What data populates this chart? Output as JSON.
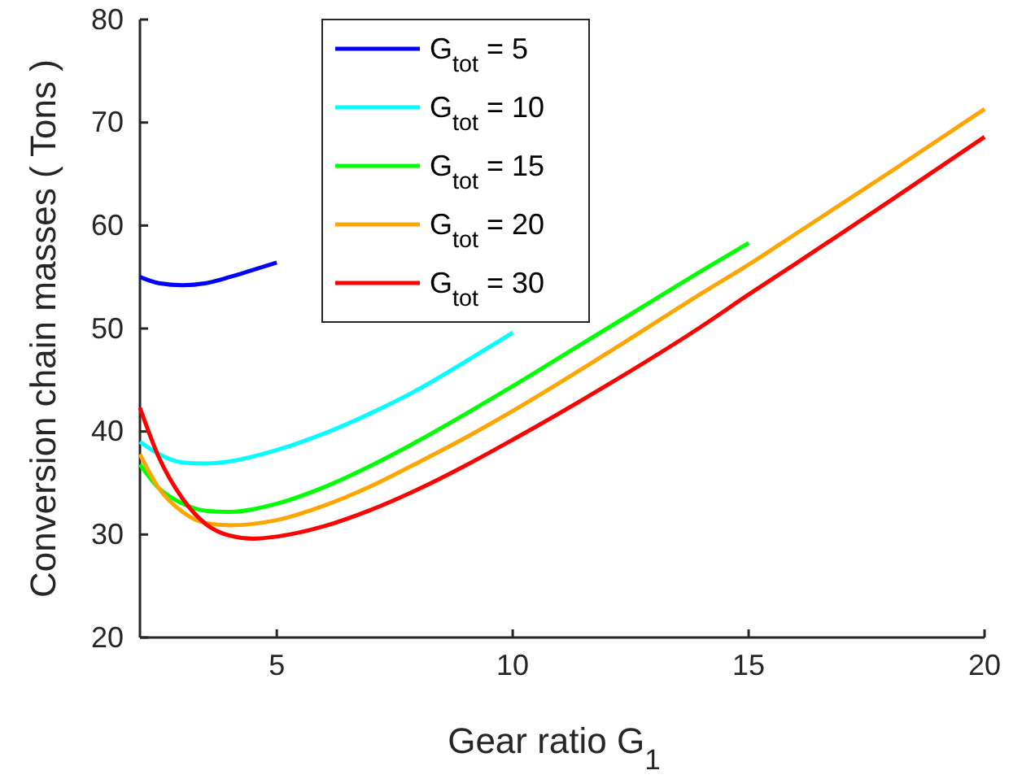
{
  "chart_data": {
    "type": "line",
    "xlabel": "Gear ratio G$_{1}$",
    "ylabel": "Conversion chain masses ( Tons )",
    "xlim": [
      2.1,
      20
    ],
    "ylim": [
      20,
      80
    ],
    "xticks": [
      5,
      10,
      15,
      20
    ],
    "yticks": [
      20,
      30,
      40,
      50,
      60,
      70,
      80
    ],
    "grid": false,
    "legend": "top",
    "line_style": "solid",
    "marker": "none",
    "series": [
      {
        "name": "G$_{tot}$ = 5",
        "color": "#0000ff",
        "x": [
          2.1,
          2.5,
          3,
          3.5,
          4,
          4.5,
          5
        ],
        "values": [
          55.0,
          54.4,
          54.2,
          54.4,
          55.0,
          55.7,
          56.4
        ]
      },
      {
        "name": "G$_{tot}$ = 10",
        "color": "#00ffff",
        "x": [
          2.1,
          2.5,
          3,
          3.5,
          4,
          5,
          6,
          7,
          8,
          9,
          10
        ],
        "values": [
          39.0,
          37.8,
          37.0,
          36.9,
          37.1,
          38.2,
          39.8,
          41.8,
          44.1,
          46.8,
          49.6
        ]
      },
      {
        "name": "G$_{tot}$ = 15",
        "color": "#00ff00",
        "x": [
          2.1,
          2.5,
          3,
          3.5,
          4,
          5,
          6,
          7,
          8,
          9,
          10,
          11,
          12,
          13,
          14,
          15
        ],
        "values": [
          36.8,
          34.5,
          33.0,
          32.3,
          32.2,
          33.0,
          34.6,
          36.7,
          39.1,
          41.7,
          44.4,
          47.2,
          50.0,
          52.8,
          55.6,
          58.3
        ]
      },
      {
        "name": "G$_{tot}$ = 20",
        "color": "#ffa500",
        "x": [
          2.1,
          2.5,
          3,
          3.5,
          4,
          5,
          6,
          7,
          8,
          9,
          10,
          12,
          14,
          15,
          16,
          18,
          20
        ],
        "values": [
          37.8,
          34.5,
          32.2,
          31.1,
          30.9,
          31.4,
          32.8,
          34.7,
          37.0,
          39.4,
          42.0,
          47.6,
          53.4,
          56.2,
          59.2,
          65.2,
          71.3
        ]
      },
      {
        "name": "G$_{tot}$ = 30",
        "color": "#ff0000",
        "x": [
          2.1,
          2.5,
          3,
          3.5,
          4,
          4.5,
          5,
          6,
          7,
          8,
          9,
          10,
          12,
          14,
          15,
          16,
          18,
          20
        ],
        "values": [
          42.3,
          37.5,
          33.5,
          31.0,
          29.9,
          29.6,
          29.8,
          30.8,
          32.4,
          34.4,
          36.7,
          39.2,
          44.5,
          50.2,
          53.3,
          56.3,
          62.4,
          68.6
        ]
      }
    ]
  }
}
